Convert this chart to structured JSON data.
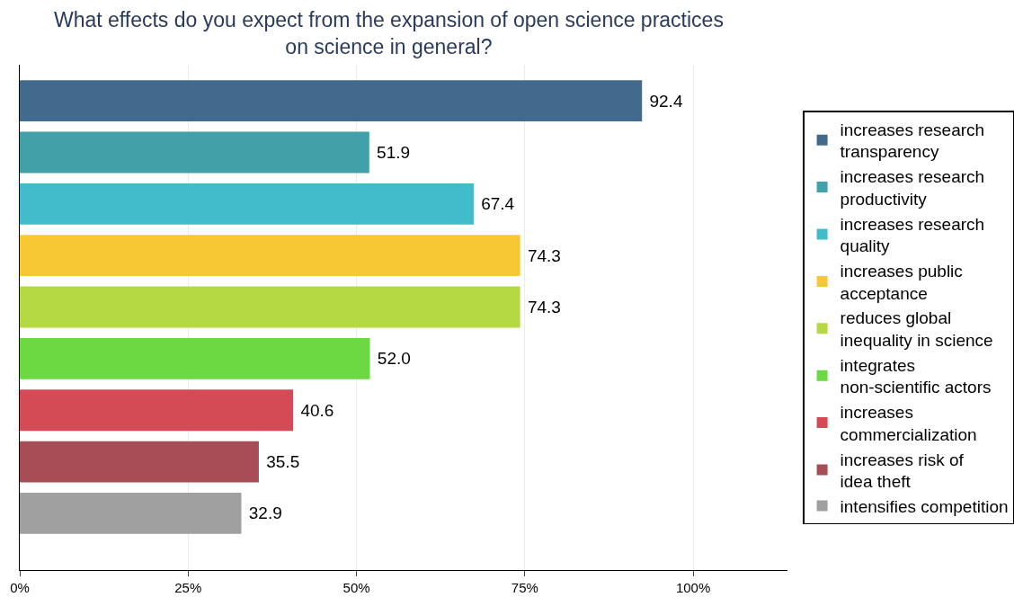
{
  "chart_data": {
    "type": "bar",
    "orientation": "horizontal",
    "title": "What effects do you expect from the expansion of open science practices\non science in general?",
    "categories": [
      null,
      null,
      null,
      null,
      null,
      null,
      null,
      null,
      null
    ],
    "series": [
      {
        "name": "increases research\ntransparency",
        "color": "#426a8c",
        "values": [
          92.4,
          null,
          null,
          null,
          null,
          null,
          null,
          null,
          null
        ]
      },
      {
        "name": "increases research\nproductivity",
        "color": "#42a0a8",
        "values": [
          null,
          51.9,
          null,
          null,
          null,
          null,
          null,
          null,
          null
        ]
      },
      {
        "name": "increases research\nquality",
        "color": "#42bccb",
        "values": [
          null,
          null,
          67.4,
          null,
          null,
          null,
          null,
          null,
          null
        ]
      },
      {
        "name": "increases public\nacceptance",
        "color": "#f8c834",
        "values": [
          null,
          null,
          null,
          74.3,
          null,
          null,
          null,
          null,
          null
        ]
      },
      {
        "name": "reduces global\ninequality in science",
        "color": "#b5d942",
        "values": [
          null,
          null,
          null,
          null,
          74.3,
          null,
          null,
          null,
          null
        ]
      },
      {
        "name": "integrates\nnon-scientific actors",
        "color": "#6cd943",
        "values": [
          null,
          null,
          null,
          null,
          null,
          52.0,
          null,
          null,
          null
        ]
      },
      {
        "name": "increases\ncommercialization",
        "color": "#d44b55",
        "values": [
          null,
          null,
          null,
          null,
          null,
          null,
          40.6,
          null,
          null
        ]
      },
      {
        "name": "increases risk of\nidea theft",
        "color": "#a84c55",
        "values": [
          null,
          null,
          null,
          null,
          null,
          null,
          null,
          35.5,
          null
        ]
      },
      {
        "name": "intensifies competition",
        "color": "#a0a0a0",
        "values": [
          null,
          null,
          null,
          null,
          null,
          null,
          null,
          null,
          32.9
        ]
      }
    ],
    "value_labels": [
      "92.4",
      "51.9",
      "67.4",
      "74.3",
      "74.3",
      "52.0",
      "40.6",
      "35.5",
      "32.9"
    ],
    "xlim": [
      0,
      114
    ],
    "xticks": [
      {
        "value": 0,
        "label": "0%"
      },
      {
        "value": 25,
        "label": "25%"
      },
      {
        "value": 50,
        "label": "50%"
      },
      {
        "value": 75,
        "label": "75%"
      },
      {
        "value": 100,
        "label": "100%"
      }
    ],
    "grid": "x",
    "legend": "right",
    "tick_labels": "x"
  }
}
